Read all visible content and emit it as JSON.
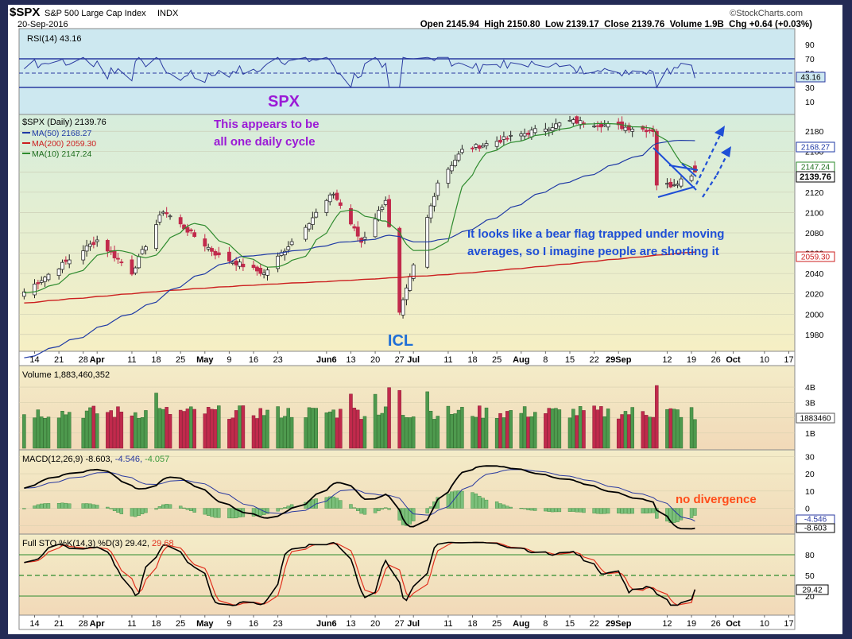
{
  "header": {
    "ticker": "$SPX",
    "name": "S&P 500 Large Cap Index",
    "exchange": "INDX",
    "brand": "©StockCharts.com",
    "date": "20-Sep-2016",
    "ohlc": "Open 2145.94  High 2150.80  Low 2139.17  Close 2139.76  Volume 1.9B  Chg +0.64 (+0.03%)"
  },
  "colors": {
    "rsi_bg": "#cde8f0",
    "price_bg": "#ecefc9",
    "lower_bg": "#f2e8c6",
    "up": "#4e9a4e",
    "down": "#c12a4c",
    "ma50": "#1f3aa5",
    "ma200": "#cc1f1f",
    "ma10": "#2e8b2e",
    "note_purple": "#9b1ad6",
    "note_blue": "#1f4fd6",
    "note_orange": "#ff4d1a"
  },
  "x_axis": {
    "date_labels": [
      "14",
      "21",
      "28",
      "Apr",
      "11",
      "18",
      "25",
      "May",
      "9",
      "16",
      "23",
      "Jun6",
      "13",
      "20",
      "27",
      "Jul",
      "11",
      "18",
      "25",
      "Aug",
      "8",
      "15",
      "22",
      "29Sep",
      "12",
      "19",
      "26",
      "Oct",
      "10",
      "17"
    ]
  },
  "rsi": {
    "label": "RSI(14) 43.16",
    "value_badge": "43.16",
    "ticks": [
      "90",
      "70",
      "50",
      "30",
      "10"
    ]
  },
  "price": {
    "legend_title": "$SPX (Daily) 2139.76",
    "ma50_label": "MA(50) 2168.27",
    "ma200_label": "MA(200) 2059.30",
    "ma10_label": "MA(10) 2147.24",
    "badge_ma50": "2168.27",
    "badge_ma10": "2147.24",
    "badge_close": "2139.76",
    "badge_ma200": "2059.30",
    "ticks": [
      "2180",
      "2160",
      "2140",
      "2120",
      "2100",
      "2080",
      "2060",
      "2040",
      "2020",
      "2000",
      "1980"
    ]
  },
  "annotations": {
    "spx": "SPX",
    "cycle_line1": "This appears to be",
    "cycle_line2": "all one daily cycle",
    "bear_flag_line1": "It looks like a bear flag trapped under moving",
    "bear_flag_line2": "averages, so I imagine people are shorting it",
    "icl": "ICL",
    "no_divergence": "no divergence"
  },
  "volume": {
    "label": "Volume 1,883,460,352",
    "badge": "1883460",
    "ticks": [
      "4B",
      "3B",
      "2B",
      "1B"
    ]
  },
  "macd": {
    "label_base": "MACD(12,26,9) -8.603, ",
    "label_signal": "-4.546, ",
    "label_hist": "-4.057",
    "badge_signal": "-4.546",
    "badge_macd": "-8.603",
    "ticks": [
      "30",
      "20",
      "10",
      "0",
      "-10"
    ]
  },
  "sto": {
    "label_base": "Full STO %K(14,3) %D(3) 29.42, ",
    "label_d": "29.68",
    "badge": "29.42",
    "ticks": [
      "80",
      "50",
      "20"
    ]
  },
  "chart_data": {
    "type": "candlestick",
    "title": "$SPX S&P 500 Large Cap Index INDX",
    "period": "Daily",
    "x_start": "2016-03-11",
    "x_end": "2016-09-20",
    "ylim": [
      1965,
      2195
    ],
    "key_points": [
      {
        "date": "2016-03-11",
        "close": 2022
      },
      {
        "date": "2016-03-22",
        "close": 2049
      },
      {
        "date": "2016-04-01",
        "close": 2073
      },
      {
        "date": "2016-04-11",
        "close": 2041
      },
      {
        "date": "2016-04-20",
        "close": 2102
      },
      {
        "date": "2016-05-06",
        "close": 2057
      },
      {
        "date": "2016-05-19",
        "close": 2040
      },
      {
        "date": "2016-06-08",
        "close": 2119
      },
      {
        "date": "2016-06-16",
        "close": 2071
      },
      {
        "date": "2016-06-23",
        "close": 2113
      },
      {
        "date": "2016-06-27",
        "close": 2000
      },
      {
        "date": "2016-07-08",
        "close": 2130
      },
      {
        "date": "2016-07-15",
        "close": 2161
      },
      {
        "date": "2016-08-15",
        "close": 2190
      },
      {
        "date": "2016-09-08",
        "close": 2181
      },
      {
        "date": "2016-09-09",
        "close": 2128
      },
      {
        "date": "2016-09-13",
        "close": 2127
      },
      {
        "date": "2016-09-20",
        "close": 2139.76
      }
    ],
    "last_bar": {
      "open": 2145.94,
      "high": 2150.8,
      "low": 2139.17,
      "close": 2139.76,
      "volume": 1883460352,
      "change": 0.64,
      "change_pct": 0.03
    },
    "moving_averages": [
      {
        "name": "MA(50)",
        "last": 2168.27
      },
      {
        "name": "MA(200)",
        "last": 2059.3
      },
      {
        "name": "MA(10)",
        "last": 2147.24
      }
    ],
    "indicators": {
      "rsi_14": 43.16,
      "macd": {
        "macd": -8.603,
        "signal": -4.546,
        "histogram": -4.057
      },
      "full_sto": {
        "k": 29.42,
        "d": 29.68
      }
    }
  }
}
